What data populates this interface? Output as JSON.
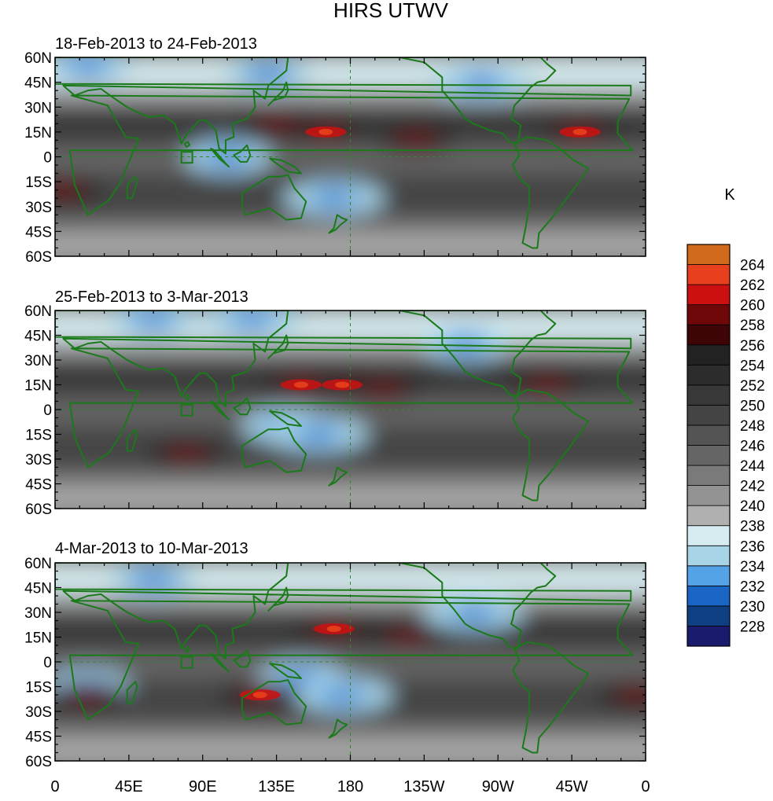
{
  "title": "HIRS UTWV",
  "units_label": "K",
  "panels": [
    {
      "title": "18-Feb-2013 to 24-Feb-2013",
      "warm_spots": [
        [
          165,
          15
        ],
        [
          320,
          15
        ],
        [
          135,
          20
        ],
        [
          5,
          -20
        ],
        [
          220,
          10
        ]
      ],
      "cold_spots": [
        [
          105,
          0
        ],
        [
          170,
          -25
        ],
        [
          130,
          50
        ],
        [
          260,
          45
        ],
        [
          20,
          55
        ]
      ]
    },
    {
      "title": "25-Feb-2013 to 3-Mar-2013",
      "warm_spots": [
        [
          175,
          15
        ],
        [
          150,
          15
        ],
        [
          200,
          12
        ],
        [
          300,
          15
        ],
        [
          80,
          -27
        ]
      ],
      "cold_spots": [
        [
          140,
          -10
        ],
        [
          160,
          -15
        ],
        [
          60,
          55
        ],
        [
          120,
          55
        ],
        [
          250,
          40
        ]
      ]
    },
    {
      "title": "4-Mar-2013 to 10-Mar-2013",
      "warm_spots": [
        [
          170,
          20
        ],
        [
          125,
          -20
        ],
        [
          355,
          -20
        ],
        [
          20,
          -20
        ],
        [
          215,
          15
        ]
      ],
      "cold_spots": [
        [
          150,
          -10
        ],
        [
          175,
          -20
        ],
        [
          60,
          50
        ],
        [
          255,
          30
        ],
        [
          20,
          -15
        ]
      ]
    }
  ],
  "lat_ticks": [
    "60N",
    "45N",
    "30N",
    "15N",
    "0",
    "15S",
    "30S",
    "45S",
    "60S"
  ],
  "lon_ticks": [
    "0",
    "45E",
    "90E",
    "135E",
    "180",
    "135W",
    "90W",
    "45W",
    "0"
  ],
  "colorbar": {
    "levels": [
      "228",
      "230",
      "232",
      "234",
      "236",
      "238",
      "240",
      "242",
      "244",
      "246",
      "248",
      "250",
      "252",
      "254",
      "256",
      "258",
      "260",
      "262",
      "264"
    ],
    "colors": [
      "#1b1b6e",
      "#0d3f82",
      "#1a66c4",
      "#54a3e6",
      "#a8d4e8",
      "#d6ecf0",
      "#b0b0b0",
      "#939393",
      "#7a7a7a",
      "#656565",
      "#545454",
      "#444444",
      "#383838",
      "#2c2c2c",
      "#222222",
      "#3d0505",
      "#6e0707",
      "#cc1010",
      "#e8401c",
      "#d26a1c"
    ]
  }
}
